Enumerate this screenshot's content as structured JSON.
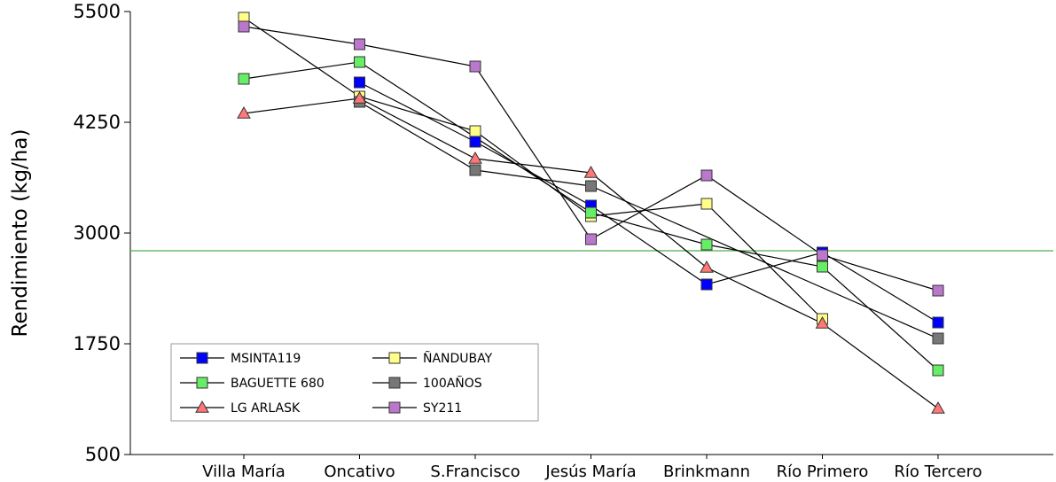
{
  "chart_data": {
    "type": "line",
    "title": "",
    "xlabel": "",
    "ylabel": "Rendimiento (kg/ha)",
    "ylim": [
      500,
      5500
    ],
    "yticks": [
      500,
      1750,
      3000,
      4250,
      5500
    ],
    "grid": false,
    "legend_position": "bottom-left",
    "categories": [
      "Villa María",
      "Oncativo",
      "S.Francisco",
      "Jesús María",
      "Brinkmann",
      "Río Primero",
      "Río Tercero"
    ],
    "reference_line": {
      "value": 2800,
      "color": "#4caf50"
    },
    "series": [
      {
        "name": "MSINTA119",
        "marker": "square",
        "color": "#0000ff",
        "values": [
          null,
          4700,
          4030,
          3310,
          2420,
          2780,
          1990
        ]
      },
      {
        "name": "ÑANDUBAY",
        "marker": "square",
        "color": "#ffff88",
        "values": [
          5430,
          4540,
          4150,
          3190,
          3330,
          2030,
          null
        ]
      },
      {
        "name": "BAGUETTE 680",
        "marker": "square",
        "color": "#66ee66",
        "values": [
          4740,
          4930,
          null,
          3230,
          2870,
          2620,
          1450
        ]
      },
      {
        "name": "100AÑOS",
        "marker": "square",
        "color": "#777777",
        "values": [
          null,
          4480,
          3710,
          3530,
          null,
          null,
          1810
        ]
      },
      {
        "name": "LG ARLASK",
        "marker": "triangle",
        "color": "#ff7777",
        "values": [
          4350,
          4520,
          3840,
          3680,
          2610,
          1980,
          1020
        ]
      },
      {
        "name": "SY211",
        "marker": "square",
        "color": "#bb77cc",
        "values": [
          5330,
          5130,
          4880,
          2930,
          3650,
          2750,
          2350
        ]
      }
    ]
  }
}
